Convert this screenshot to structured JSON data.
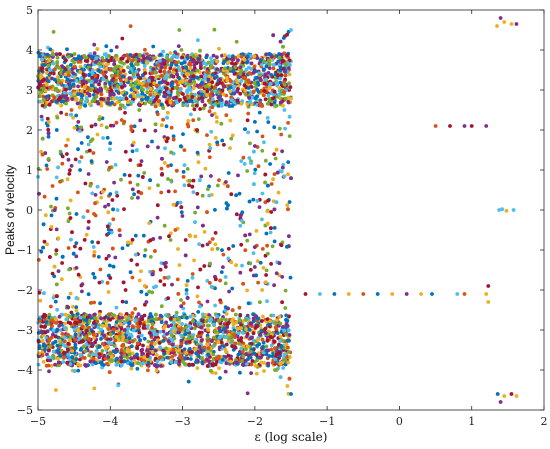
{
  "chart_data": {
    "type": "scatter",
    "title": "",
    "xlabel": "ε (log scale)",
    "ylabel": "Peaks of velocity",
    "xlim": [
      -5,
      2
    ],
    "ylim": [
      -5,
      5
    ],
    "xticks": [
      -5,
      -4,
      -3,
      -2,
      -1,
      0,
      1,
      2
    ],
    "yticks": [
      -5,
      -4,
      -3,
      -2,
      -1,
      0,
      1,
      2,
      3,
      4,
      5
    ],
    "xtick_labels": [
      "−5",
      "−4",
      "−3",
      "−2",
      "−1",
      "0",
      "1",
      "2"
    ],
    "ytick_labels": [
      "−5",
      "−4",
      "−3",
      "−2",
      "−1",
      "0",
      "1",
      "2",
      "3",
      "4",
      "5"
    ],
    "grid": false,
    "legend": "none",
    "colors": [
      "#0072BD",
      "#D95319",
      "#EDB120",
      "#7E2F8E",
      "#77AC30",
      "#4DBEEE",
      "#A2142F"
    ],
    "series": [
      {
        "description": "dense chaotic band",
        "x_range": [
          -5.0,
          -1.5
        ],
        "y_range": [
          -4.6,
          4.6
        ],
        "points": [
          [
            -4.95,
            3.5
          ],
          [
            -4.9,
            -3.4
          ],
          [
            -4.85,
            2.2
          ],
          [
            -4.8,
            0.6
          ],
          [
            -4.75,
            -1.1
          ],
          [
            -4.7,
            3.9
          ],
          [
            -4.65,
            -3.8
          ],
          [
            -4.6,
            1.4
          ],
          [
            -4.55,
            -0.2
          ],
          [
            -4.5,
            2.9
          ],
          [
            -4.45,
            -2.6
          ],
          [
            -4.4,
            3.3
          ],
          [
            -4.35,
            -3.2
          ],
          [
            -4.3,
            0.9
          ],
          [
            -4.25,
            -0.8
          ],
          [
            -4.2,
            3.7
          ],
          [
            -4.15,
            -3.6
          ],
          [
            -4.1,
            1.8
          ],
          [
            -4.0,
            -1.7
          ],
          [
            -3.9,
            3.1
          ],
          [
            -3.8,
            -3.0
          ],
          [
            -3.7,
            0.3
          ],
          [
            -3.6,
            2.5
          ],
          [
            -3.5,
            -2.3
          ],
          [
            -3.4,
            3.8
          ],
          [
            -3.3,
            -3.9
          ],
          [
            -3.2,
            1.1
          ],
          [
            -3.1,
            -0.5
          ],
          [
            -3.0,
            3.2
          ],
          [
            -2.9,
            -3.3
          ],
          [
            -2.8,
            2.0
          ],
          [
            -2.7,
            -1.4
          ],
          [
            -2.6,
            3.6
          ],
          [
            -2.5,
            -3.7
          ],
          [
            -2.4,
            0.7
          ],
          [
            -2.3,
            -0.9
          ],
          [
            -2.2,
            3.4
          ],
          [
            -2.1,
            -3.1
          ],
          [
            -2.0,
            1.6
          ],
          [
            -1.9,
            -2.0
          ],
          [
            -1.8,
            3.9
          ],
          [
            -1.7,
            -4.0
          ],
          [
            -1.6,
            4.3
          ],
          [
            -1.55,
            -4.4
          ],
          [
            -1.52,
            0.2
          ],
          [
            -1.5,
            4.5
          ],
          [
            -1.5,
            -4.6
          ]
        ]
      },
      {
        "description": "stable branch y≈-2.1",
        "points": [
          [
            -1.3,
            -2.1
          ],
          [
            -1.1,
            -2.1
          ],
          [
            -0.9,
            -2.1
          ],
          [
            -0.7,
            -2.1
          ],
          [
            -0.5,
            -2.1
          ],
          [
            -0.3,
            -2.1
          ],
          [
            -0.1,
            -2.1
          ],
          [
            0.1,
            -2.1
          ],
          [
            0.3,
            -2.1
          ],
          [
            0.45,
            -2.1
          ],
          [
            0.8,
            -2.1
          ],
          [
            0.9,
            -2.1
          ],
          [
            1.2,
            -2.1
          ],
          [
            1.23,
            -1.9
          ],
          [
            1.23,
            -2.3
          ]
        ]
      },
      {
        "description": "branch y≈2.1",
        "points": [
          [
            0.5,
            2.1
          ],
          [
            0.7,
            2.1
          ],
          [
            0.9,
            2.1
          ],
          [
            1.0,
            2.1
          ],
          [
            1.2,
            2.1
          ]
        ]
      },
      {
        "description": "branch y≈4.6",
        "points": [
          [
            1.35,
            4.6
          ],
          [
            1.4,
            4.8
          ],
          [
            1.45,
            4.7
          ],
          [
            1.55,
            4.65
          ],
          [
            1.62,
            4.65
          ]
        ]
      },
      {
        "description": "branch y≈0",
        "points": [
          [
            1.38,
            0.0
          ],
          [
            1.42,
            0.02
          ],
          [
            1.48,
            -0.02
          ],
          [
            1.58,
            0.0
          ]
        ]
      },
      {
        "description": "branch y≈-4.65",
        "points": [
          [
            1.36,
            -4.6
          ],
          [
            1.4,
            -4.8
          ],
          [
            1.45,
            -4.65
          ],
          [
            1.55,
            -4.6
          ],
          [
            1.62,
            -4.65
          ]
        ]
      }
    ]
  }
}
